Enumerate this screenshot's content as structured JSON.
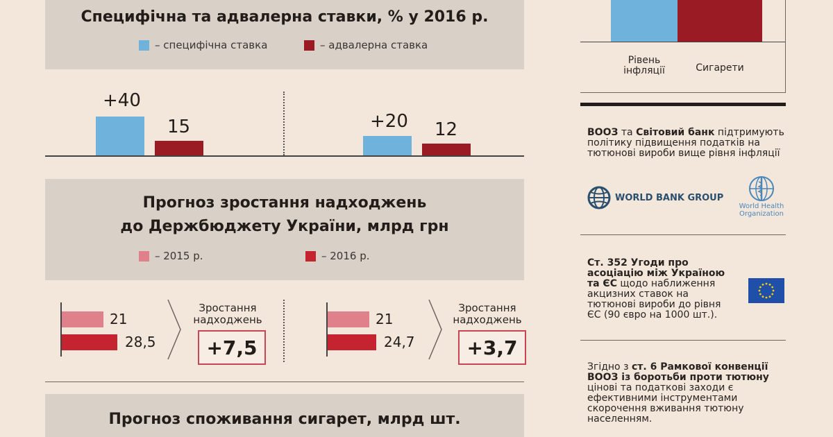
{
  "chart_data": [
    {
      "type": "bar",
      "title": "Специфічна та адвалерна ставки, % у 2016 р.",
      "legend": [
        {
          "label": "– специфічна ставка",
          "color": "#6fb3dd"
        },
        {
          "label": "– адвалерна ставка",
          "color": "#9a1b24"
        }
      ],
      "groups": [
        {
          "specific": "+40",
          "specific_value": 40,
          "advalorem": "15",
          "advalorem_value": 15
        },
        {
          "specific": "+20",
          "specific_value": 20,
          "advalorem": "12",
          "advalorem_value": 12
        }
      ]
    },
    {
      "type": "bar",
      "orientation": "horizontal",
      "title_line1": "Прогноз зростання надходжень",
      "title_line2": "до Держбюджету України, млрд грн",
      "legend": [
        {
          "label": "– 2015 р.",
          "color": "#e0808a"
        },
        {
          "label": "– 2016 р.",
          "color": "#c4232f"
        }
      ],
      "groups": [
        {
          "y2015": "21",
          "v2015": 21,
          "y2016": "28,5",
          "v2016": 28.5,
          "growth_label_1": "Зростання",
          "growth_label_2": "надходжень",
          "growth": "+7,5"
        },
        {
          "y2015": "21",
          "v2015": 21,
          "y2016": "24,7",
          "v2016": 24.7,
          "growth_label_1": "Зростання",
          "growth_label_2": "надходжень",
          "growth": "+3,7"
        }
      ]
    },
    {
      "type": "bar",
      "title": "Прогноз споживання сигарет, млрд шт."
    },
    {
      "type": "bar",
      "categories": [
        "Рівень інфляції",
        "Сигарети"
      ],
      "category_lines": [
        [
          "Рівень",
          "інфляції"
        ],
        [
          "Сигарети"
        ]
      ],
      "colors": [
        "#6fb3dd",
        "#9a1b24"
      ]
    }
  ],
  "sidebar": {
    "who_wb": {
      "strong1": "ВООЗ",
      "mid": " та ",
      "strong2": "Світовий банк",
      "rest": " підтримують політику підвищення податків на тютюнові вироби вище рівня інфляції",
      "wb_logo_text": "WORLD BANK GROUP",
      "who_logo_line1": "World Health",
      "who_logo_line2": "Organization"
    },
    "association": {
      "strong": "Ст. 352 Угоди про асоціацію між Україною та ЄС",
      "rest": " щодо наближення акцизних ставок на тютюнові вироби до рівня ЄС (90 євро на 1000 шт.)."
    },
    "framework": {
      "pre": "Згідно з ",
      "strong": "ст. 6 Рамкової конвенції ВООЗ із боротьби проти тютюну",
      "rest": " цінові та податкові заходи є ефективними інструментами скорочення вживання тютюну населенням."
    }
  },
  "colors": {
    "background": "#f3e7dc",
    "panel": "#d9d0c7",
    "blue": "#6fb3dd",
    "dark_red": "#9a1b24",
    "pink": "#e0808a",
    "red": "#c4232f",
    "eu_blue": "#1f4fa8",
    "eu_star": "#f5d000"
  }
}
